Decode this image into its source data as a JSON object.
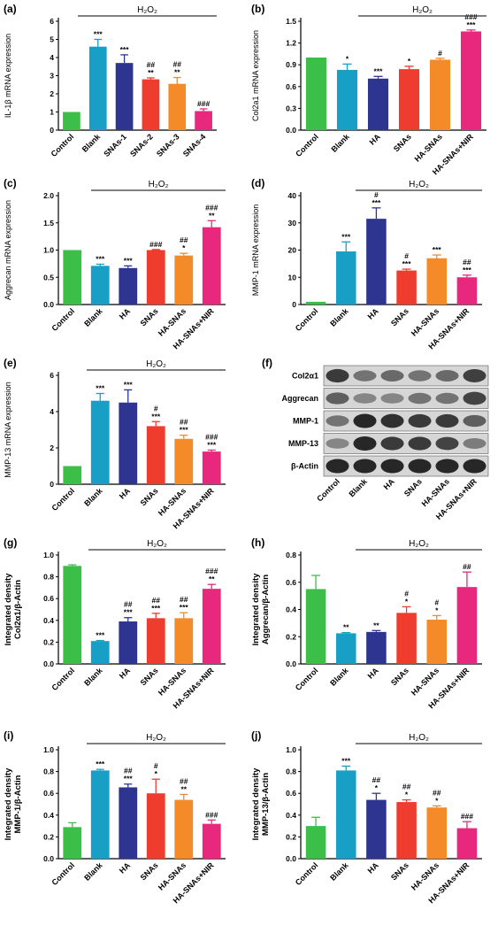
{
  "colors": {
    "control": "#3bbf48",
    "blank": "#189fc5",
    "ha": "#2d3591",
    "snas": "#ee3c2e",
    "hasnas": "#f58a28",
    "nir": "#e8287c",
    "axis": "#000000"
  },
  "chart_data": [
    {
      "panel": "(a)",
      "type": "bar",
      "categories": [
        "Control",
        "Blank",
        "SNAs-1",
        "SNAs-2",
        "SNAs-3",
        "SNAs-4"
      ],
      "values": [
        1.0,
        4.6,
        3.7,
        2.8,
        2.55,
        1.05
      ],
      "errors": [
        0,
        0.4,
        0.45,
        0.08,
        0.35,
        0.12
      ],
      "bar_colors": [
        "control",
        "blank",
        "ha",
        "snas",
        "hasnas",
        "nir"
      ],
      "sig": [
        [],
        [
          "***"
        ],
        [
          "***"
        ],
        [
          "##",
          "**"
        ],
        [
          "##",
          "**"
        ],
        [
          "###"
        ]
      ],
      "ylabel": "IL-1β mRNA expression",
      "yticks": [
        "0",
        "1",
        "2",
        "3",
        "4",
        "5",
        "6"
      ],
      "ylim": [
        0,
        6
      ],
      "bracket_label": "H₂O₂"
    },
    {
      "panel": "(b)",
      "type": "bar",
      "categories": [
        "Control",
        "Blank",
        "HA",
        "SNAs",
        "HA-SNAs",
        "HA-SNAs+NIR"
      ],
      "values": [
        1.0,
        0.83,
        0.71,
        0.84,
        0.97,
        1.36
      ],
      "errors": [
        0,
        0.08,
        0.03,
        0.04,
        0.02,
        0.02
      ],
      "bar_colors": [
        "control",
        "blank",
        "ha",
        "snas",
        "hasnas",
        "nir"
      ],
      "sig": [
        [],
        [
          "*"
        ],
        [
          "***"
        ],
        [
          "*"
        ],
        [
          "#"
        ],
        [
          "###",
          "***"
        ]
      ],
      "ylabel": "Col2a1 mRNA expression",
      "yticks": [
        "0.0",
        "0.3",
        "0.6",
        "0.9",
        "1.2",
        "1.5"
      ],
      "ylim": [
        0,
        1.5
      ],
      "bracket_label": "H₂O₂"
    },
    {
      "panel": "(c)",
      "type": "bar",
      "categories": [
        "Control",
        "Blank",
        "HA",
        "SNAs",
        "HA-SNAs",
        "HA-SNAs+NIR"
      ],
      "values": [
        1.0,
        0.71,
        0.67,
        1.0,
        0.9,
        1.42
      ],
      "errors": [
        0,
        0.03,
        0.04,
        0.01,
        0.04,
        0.12
      ],
      "bar_colors": [
        "control",
        "blank",
        "ha",
        "snas",
        "hasnas",
        "nir"
      ],
      "sig": [
        [],
        [
          "***"
        ],
        [
          "***"
        ],
        [
          "###"
        ],
        [
          "##",
          "*"
        ],
        [
          "###",
          "**"
        ]
      ],
      "ylabel": "Aggrecan mRNA expression",
      "yticks": [
        "0.0",
        "0.5",
        "1.0",
        "1.5",
        "2.0"
      ],
      "ylim": [
        0,
        2.0
      ],
      "bracket_label": "H₂O₂"
    },
    {
      "panel": "(d)",
      "type": "bar",
      "categories": [
        "Control",
        "Blank",
        "HA",
        "SNAs",
        "HA-SNAs",
        "HA-SNAs+NIR"
      ],
      "values": [
        1.0,
        19.5,
        31.5,
        12.5,
        17.0,
        10.0
      ],
      "errors": [
        0,
        3.5,
        4.0,
        0.5,
        1.2,
        0.8
      ],
      "bar_colors": [
        "control",
        "blank",
        "ha",
        "snas",
        "hasnas",
        "nir"
      ],
      "sig": [
        [],
        [
          "***"
        ],
        [
          "#",
          "***"
        ],
        [
          "#",
          "***"
        ],
        [
          "***"
        ],
        [
          "##",
          "***"
        ]
      ],
      "ylabel": "MMP-1 mRNA expression",
      "yticks": [
        "0",
        "10",
        "20",
        "30",
        "40"
      ],
      "ylim": [
        0,
        40
      ],
      "bracket_label": "H₂O₂"
    },
    {
      "panel": "(e)",
      "type": "bar",
      "categories": [
        "Control",
        "Blank",
        "HA",
        "SNAs",
        "HA-SNAs",
        "HA-SNAs+NIR"
      ],
      "values": [
        1.0,
        4.6,
        4.5,
        3.2,
        2.5,
        1.8
      ],
      "errors": [
        0,
        0.4,
        0.7,
        0.25,
        0.2,
        0.08
      ],
      "bar_colors": [
        "control",
        "blank",
        "ha",
        "snas",
        "hasnas",
        "nir"
      ],
      "sig": [
        [],
        [
          "***"
        ],
        [
          "***"
        ],
        [
          "#",
          "***"
        ],
        [
          "##",
          "***"
        ],
        [
          "###",
          "***"
        ]
      ],
      "ylabel": "MMP-13 mRNA expression",
      "yticks": [
        "0",
        "2",
        "4",
        "6"
      ],
      "ylim": [
        0,
        6
      ],
      "bracket_label": "H₂O₂"
    },
    {
      "panel": "(g)",
      "type": "bar",
      "categories": [
        "Control",
        "Blank",
        "HA",
        "SNAs",
        "HA-SNAs",
        "HA-SNAs+NIR"
      ],
      "values": [
        0.9,
        0.21,
        0.39,
        0.42,
        0.42,
        0.69
      ],
      "errors": [
        0.01,
        0.005,
        0.035,
        0.045,
        0.05,
        0.04
      ],
      "bar_colors": [
        "control",
        "blank",
        "ha",
        "snas",
        "hasnas",
        "nir"
      ],
      "sig": [
        [],
        [
          "***"
        ],
        [
          "##",
          "***"
        ],
        [
          "##",
          "***"
        ],
        [
          "##",
          "***"
        ],
        [
          "###",
          "**"
        ]
      ],
      "ylabel_lines": [
        "Integrated density",
        "Col2α1/β-Actin"
      ],
      "yticks": [
        "0.0",
        "0.2",
        "0.4",
        "0.6",
        "0.8",
        "1.0"
      ],
      "ylim": [
        0,
        1.0
      ],
      "bracket_label": "H₂O₂"
    },
    {
      "panel": "(h)",
      "type": "bar",
      "categories": [
        "Control",
        "Blank",
        "HA",
        "SNAs",
        "HA-SNAs",
        "HA-SNAs+NIR"
      ],
      "values": [
        0.55,
        0.225,
        0.235,
        0.375,
        0.325,
        0.565
      ],
      "errors": [
        0.1,
        0.005,
        0.01,
        0.045,
        0.03,
        0.11
      ],
      "bar_colors": [
        "control",
        "blank",
        "ha",
        "snas",
        "hasnas",
        "nir"
      ],
      "sig": [
        [],
        [
          "**"
        ],
        [
          "**"
        ],
        [
          "#",
          "*"
        ],
        [
          "#",
          "*"
        ],
        [
          "##"
        ]
      ],
      "ylabel_lines": [
        "Integrated density",
        "Aggrecan/β-Actin"
      ],
      "yticks": [
        "0.0",
        "0.2",
        "0.4",
        "0.6",
        "0.8"
      ],
      "ylim": [
        0,
        0.8
      ],
      "bracket_label": "H₂O₂"
    },
    {
      "panel": "(i)",
      "type": "bar",
      "categories": [
        "Control",
        "Blank",
        "HA",
        "SNAs",
        "HA-SNAs",
        "HA-SNAs+NIR"
      ],
      "values": [
        0.29,
        0.81,
        0.655,
        0.6,
        0.54,
        0.32
      ],
      "errors": [
        0.04,
        0.01,
        0.03,
        0.13,
        0.05,
        0.035
      ],
      "bar_colors": [
        "control",
        "blank",
        "ha",
        "snas",
        "hasnas",
        "nir"
      ],
      "sig": [
        [],
        [
          "***"
        ],
        [
          "##",
          "***"
        ],
        [
          "#",
          "*"
        ],
        [
          "##",
          "**"
        ],
        [
          "###"
        ]
      ],
      "ylabel_lines": [
        "Integrated density",
        "MMP-1/β-Actin"
      ],
      "yticks": [
        "0.0",
        "0.2",
        "0.4",
        "0.6",
        "0.8",
        "1.0"
      ],
      "ylim": [
        0,
        1.0
      ],
      "bracket_label": "H₂O₂"
    },
    {
      "panel": "(j)",
      "type": "bar",
      "categories": [
        "Control",
        "Blank",
        "HA",
        "SNAs",
        "HA-SNAs",
        "HA-SNAs+NIR"
      ],
      "values": [
        0.3,
        0.81,
        0.54,
        0.52,
        0.47,
        0.28
      ],
      "errors": [
        0.08,
        0.04,
        0.06,
        0.02,
        0.015,
        0.06
      ],
      "bar_colors": [
        "control",
        "blank",
        "ha",
        "snas",
        "hasnas",
        "nir"
      ],
      "sig": [
        [],
        [
          "***"
        ],
        [
          "##",
          "*"
        ],
        [
          "##",
          "*"
        ],
        [
          "##",
          "*"
        ],
        [
          "###"
        ]
      ],
      "ylabel_lines": [
        "Integrated density",
        "MMP-13/β-Actin"
      ],
      "yticks": [
        "0.0",
        "0.2",
        "0.4",
        "0.6",
        "0.8",
        "1.0"
      ],
      "ylim": [
        0,
        1.0
      ],
      "bracket_label": "H₂O₂"
    }
  ],
  "western_blot": {
    "panel": "(f)",
    "rows": [
      {
        "label": "Col2α1",
        "intensity": [
          0.75,
          0.45,
          0.5,
          0.45,
          0.5,
          0.72
        ]
      },
      {
        "label": "Aggrecan",
        "intensity": [
          0.55,
          0.35,
          0.35,
          0.45,
          0.45,
          0.7
        ]
      },
      {
        "label": "MMP-1",
        "intensity": [
          0.45,
          0.85,
          0.8,
          0.75,
          0.75,
          0.55
        ]
      },
      {
        "label": "MMP-13",
        "intensity": [
          0.35,
          0.85,
          0.75,
          0.75,
          0.7,
          0.4
        ]
      },
      {
        "label": "β-Actin",
        "intensity": [
          0.85,
          0.85,
          0.85,
          0.85,
          0.85,
          0.85
        ]
      }
    ],
    "categories": [
      "Control",
      "Blank",
      "HA",
      "SNAs",
      "HA-SNAs",
      "HA-SNAs+NIR"
    ]
  }
}
